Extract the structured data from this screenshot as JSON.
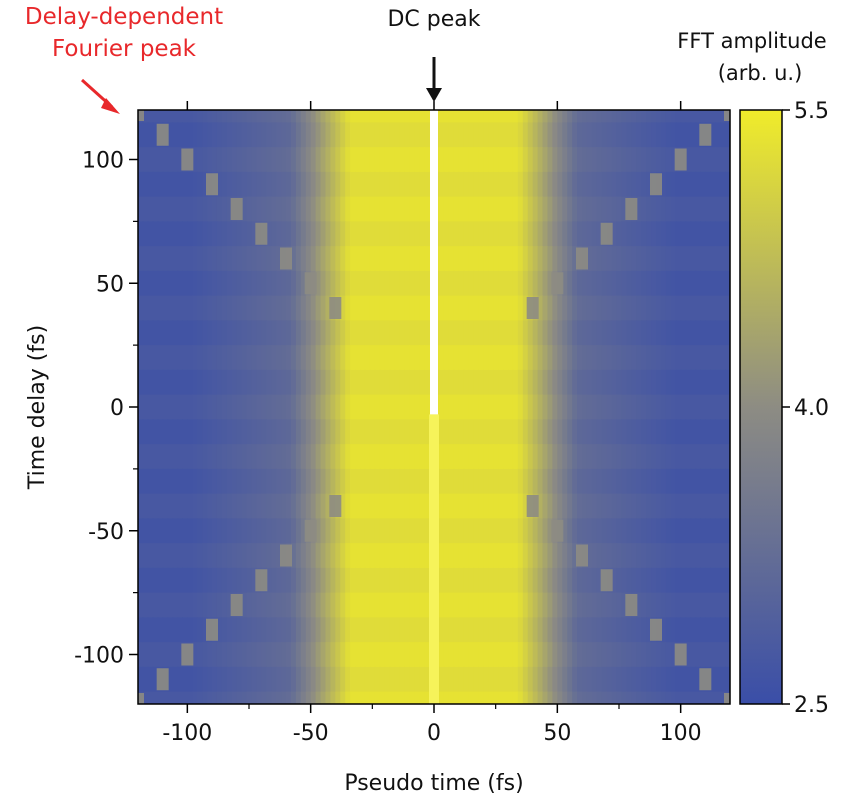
{
  "chart_data": {
    "type": "heatmap",
    "xlabel": "Pseudo time (fs)",
    "ylabel": "Time delay (fs)",
    "xlim": [
      -120,
      120
    ],
    "ylim": [
      -120,
      120
    ],
    "xticks": [
      -100,
      -50,
      0,
      50,
      100
    ],
    "yticks": [
      100,
      50,
      0,
      -50,
      -100
    ],
    "xtick_labels": [
      "-100",
      "-50",
      "0",
      "50",
      "100"
    ],
    "ytick_labels": [
      "100",
      "50",
      "0",
      "-50",
      "-100"
    ],
    "colorbar": {
      "title_line1": "FFT amplitude",
      "title_line2": "(arb. u.)",
      "range": [
        2.5,
        5.5
      ],
      "ticks": [
        5.5,
        4.0,
        2.5
      ],
      "tick_labels": [
        "5.5",
        "4.0",
        "2.5"
      ],
      "colors": [
        "#3a4ea8",
        "#8d8c83",
        "#f0ec2a"
      ]
    },
    "delay_step_fs": 10,
    "central_band": {
      "center_fs": 0,
      "edge_fs": 48,
      "level": 5.3
    },
    "background_level": 2.7,
    "dc_peak": {
      "x_fs": 0,
      "level": 5.5
    },
    "fourier_peak": {
      "level": 4.0,
      "relation": "x = ±delay"
    },
    "annotations": {
      "dc_peak": "DC peak",
      "fourier_peak_line1": "Delay-dependent",
      "fourier_peak_line2": "Fourier peak",
      "fourier_peak_color": "#e8282b"
    }
  }
}
